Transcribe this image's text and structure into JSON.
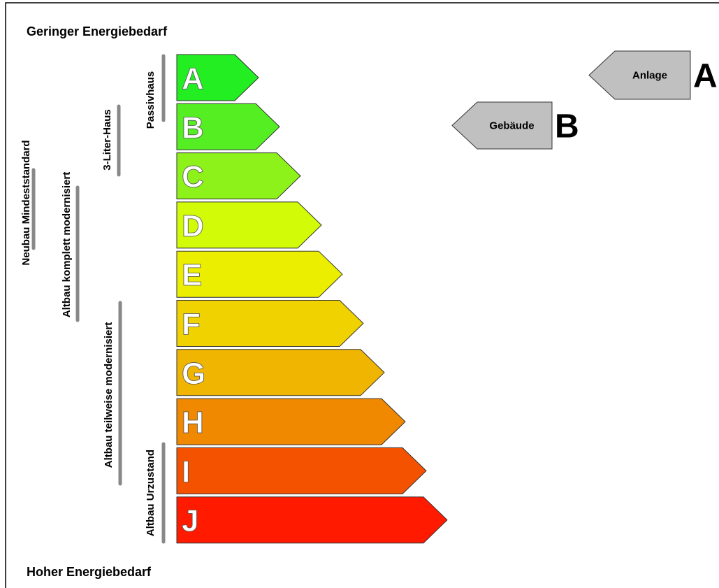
{
  "top_label": "Geringer Energiebedarf",
  "bottom_label": "Hoher Energiebedarf",
  "classes": [
    {
      "letter": "A",
      "color": "#22ee22"
    },
    {
      "letter": "B",
      "color": "#55ee22"
    },
    {
      "letter": "C",
      "color": "#8cf21a"
    },
    {
      "letter": "D",
      "color": "#d2fb08"
    },
    {
      "letter": "E",
      "color": "#ecee00"
    },
    {
      "letter": "F",
      "color": "#efd200"
    },
    {
      "letter": "G",
      "color": "#efb500"
    },
    {
      "letter": "H",
      "color": "#f08800"
    },
    {
      "letter": "I",
      "color": "#f55200"
    },
    {
      "letter": "J",
      "color": "#ff1a00"
    }
  ],
  "standards": [
    {
      "label": "Passivhaus"
    },
    {
      "label": "3-Liter-Haus"
    },
    {
      "label": "Neubau Mindeststandard"
    },
    {
      "label": "Altbau komplett modernisiert"
    },
    {
      "label": "Altbau teilweise modernisiert"
    },
    {
      "label": "Altbau Urzustand"
    }
  ],
  "markers": [
    {
      "label": "Anlage",
      "letter": "A"
    },
    {
      "label": "Gebäude",
      "letter": "B"
    }
  ]
}
